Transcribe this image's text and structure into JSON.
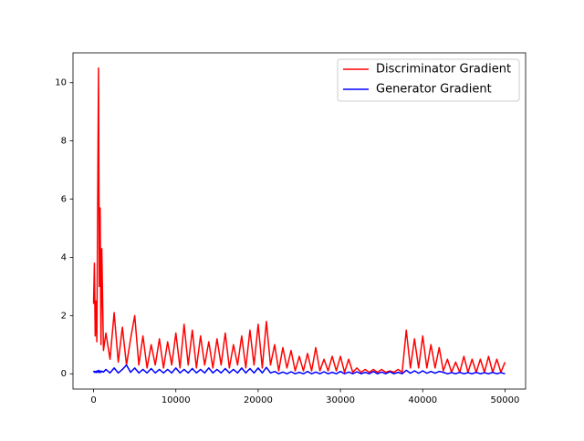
{
  "chart_data": {
    "type": "line",
    "x": [
      0,
      100,
      200,
      300,
      400,
      500,
      600,
      700,
      800,
      900,
      1000,
      1200,
      1500,
      2000,
      2500,
      3000,
      3500,
      4000,
      4500,
      5000,
      5500,
      6000,
      6500,
      7000,
      7500,
      8000,
      8500,
      9000,
      9500,
      10000,
      10500,
      11000,
      11500,
      12000,
      12500,
      13000,
      13500,
      14000,
      14500,
      15000,
      15500,
      16000,
      16500,
      17000,
      17500,
      18000,
      18500,
      19000,
      19500,
      20000,
      20500,
      21000,
      21500,
      22000,
      22500,
      23000,
      23500,
      24000,
      24500,
      25000,
      25500,
      26000,
      26500,
      27000,
      27500,
      28000,
      28500,
      29000,
      29500,
      30000,
      30500,
      31000,
      31500,
      32000,
      32500,
      33000,
      33500,
      34000,
      34500,
      35000,
      35500,
      36000,
      36500,
      37000,
      37500,
      38000,
      38500,
      39000,
      39500,
      40000,
      40500,
      41000,
      41500,
      42000,
      42500,
      43000,
      43500,
      44000,
      44500,
      45000,
      45500,
      46000,
      46500,
      47000,
      47500,
      48000,
      48500,
      49000,
      49500,
      50000
    ],
    "series": [
      {
        "name": "Discriminator Gradient",
        "color": "#ff0000",
        "values": [
          2.4,
          3.8,
          1.3,
          2.5,
          1.1,
          6.0,
          10.5,
          3.0,
          5.7,
          1.0,
          4.3,
          0.8,
          1.4,
          0.5,
          2.1,
          0.4,
          1.6,
          0.3,
          1.2,
          2.0,
          0.3,
          1.3,
          0.2,
          1.0,
          0.3,
          1.2,
          0.2,
          1.1,
          0.3,
          1.4,
          0.2,
          1.7,
          0.3,
          1.5,
          0.2,
          1.3,
          0.3,
          1.1,
          0.2,
          1.2,
          0.3,
          1.4,
          0.2,
          1.0,
          0.3,
          1.3,
          0.2,
          1.5,
          0.3,
          1.7,
          0.2,
          1.8,
          0.3,
          1.0,
          0.1,
          0.9,
          0.2,
          0.8,
          0.1,
          0.6,
          0.1,
          0.7,
          0.1,
          0.9,
          0.1,
          0.5,
          0.1,
          0.6,
          0.1,
          0.6,
          0.05,
          0.5,
          0.05,
          0.2,
          0.05,
          0.15,
          0.05,
          0.15,
          0.05,
          0.15,
          0.05,
          0.1,
          0.05,
          0.15,
          0.05,
          1.5,
          0.2,
          1.2,
          0.2,
          1.3,
          0.2,
          1.0,
          0.2,
          0.9,
          0.1,
          0.5,
          0.05,
          0.4,
          0.05,
          0.6,
          0.05,
          0.5,
          0.05,
          0.5,
          0.05,
          0.6,
          0.05,
          0.5,
          0.05,
          0.4
        ]
      },
      {
        "name": "Generator Gradient",
        "color": "#0000ff",
        "values": [
          0.1,
          0.05,
          0.08,
          0.04,
          0.1,
          0.05,
          0.12,
          0.04,
          0.1,
          0.05,
          0.09,
          0.06,
          0.15,
          0.03,
          0.2,
          0.03,
          0.15,
          0.3,
          0.05,
          0.2,
          0.03,
          0.15,
          0.03,
          0.18,
          0.03,
          0.15,
          0.03,
          0.15,
          0.03,
          0.2,
          0.03,
          0.15,
          0.03,
          0.18,
          0.03,
          0.15,
          0.03,
          0.2,
          0.03,
          0.15,
          0.03,
          0.18,
          0.03,
          0.15,
          0.03,
          0.2,
          0.03,
          0.18,
          0.03,
          0.2,
          0.03,
          0.22,
          0.03,
          0.08,
          0,
          0.06,
          0,
          0.07,
          0,
          0.05,
          0,
          0.08,
          0,
          0.06,
          0,
          0.07,
          0,
          0.05,
          0,
          0.08,
          0,
          0.06,
          0,
          0.07,
          0,
          0.05,
          0,
          0.08,
          0,
          0.06,
          0,
          0.07,
          0,
          0.05,
          0,
          0.12,
          0.02,
          0.1,
          0.02,
          0.1,
          0.02,
          0.08,
          0.02,
          0.08,
          0.05,
          0,
          0.04,
          0,
          0.05,
          0,
          0.04,
          0,
          0.05,
          0,
          0.04,
          0,
          0.05,
          0,
          0.04,
          0
        ]
      }
    ],
    "xlim": [
      -2500,
      52500
    ],
    "ylim": [
      -0.525,
      11.025
    ],
    "xticks": [
      0,
      10000,
      20000,
      30000,
      40000,
      50000
    ],
    "yticks": [
      0,
      2,
      4,
      6,
      8,
      10
    ],
    "legend": "upper right"
  }
}
